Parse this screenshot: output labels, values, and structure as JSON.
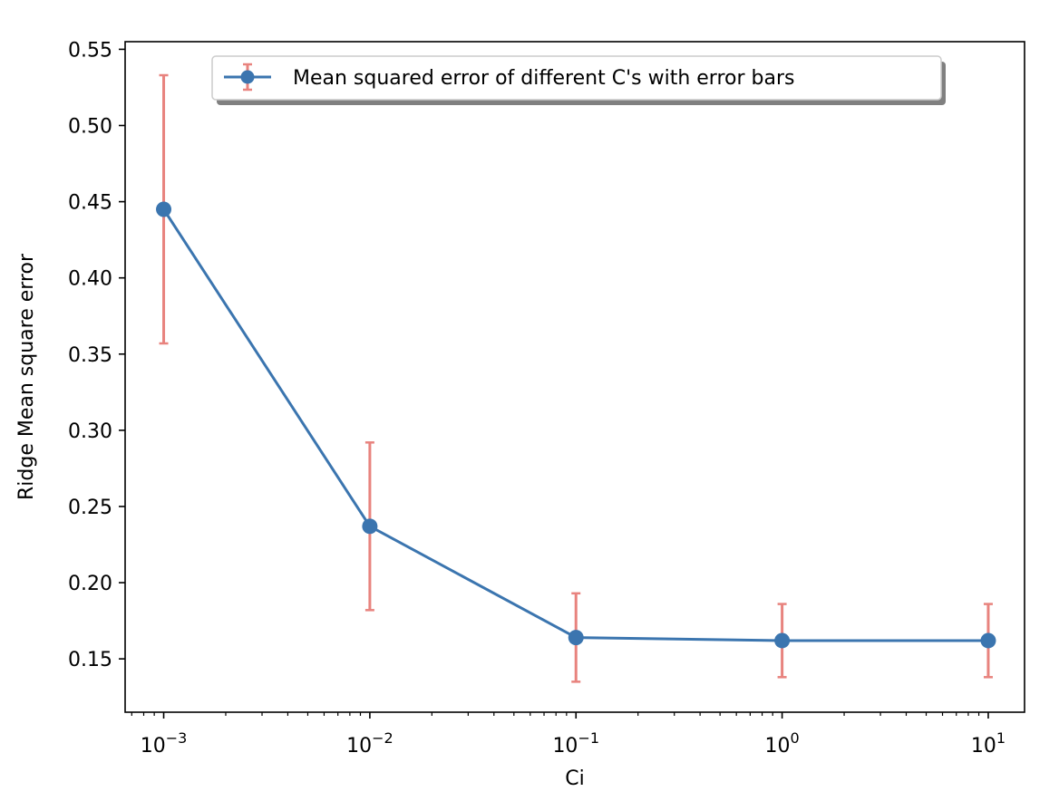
{
  "chart_data": {
    "type": "line",
    "title": "",
    "xlabel": "Ci",
    "ylabel": "Ridge Mean square error",
    "xscale": "log",
    "xlim": [
      0.00065,
      15
    ],
    "ylim": [
      0.115,
      0.555
    ],
    "grid": false,
    "legend_position": "top-center",
    "x_tick_labels": [
      {
        "value": 0.001,
        "base": "10",
        "exp": "−3"
      },
      {
        "value": 0.01,
        "base": "10",
        "exp": "−2"
      },
      {
        "value": 0.1,
        "base": "10",
        "exp": "−1"
      },
      {
        "value": 1,
        "base": "10",
        "exp": "0"
      },
      {
        "value": 10,
        "base": "10",
        "exp": "1"
      }
    ],
    "y_ticks": [
      0.15,
      0.2,
      0.25,
      0.3,
      0.35,
      0.4,
      0.45,
      0.5,
      0.55
    ],
    "y_tick_labels": [
      "0.15",
      "0.20",
      "0.25",
      "0.30",
      "0.35",
      "0.40",
      "0.45",
      "0.50",
      "0.55"
    ],
    "series": [
      {
        "name": "Mean squared error of different C's with error bars",
        "x": [
          0.001,
          0.01,
          0.1,
          1,
          10
        ],
        "y": [
          0.445,
          0.237,
          0.164,
          0.162,
          0.162
        ],
        "yerr": [
          0.088,
          0.055,
          0.029,
          0.024,
          0.024
        ],
        "line_color": "#3b75af",
        "marker_color": "#3b75af",
        "errorbar_color": "#e8837e"
      }
    ]
  }
}
